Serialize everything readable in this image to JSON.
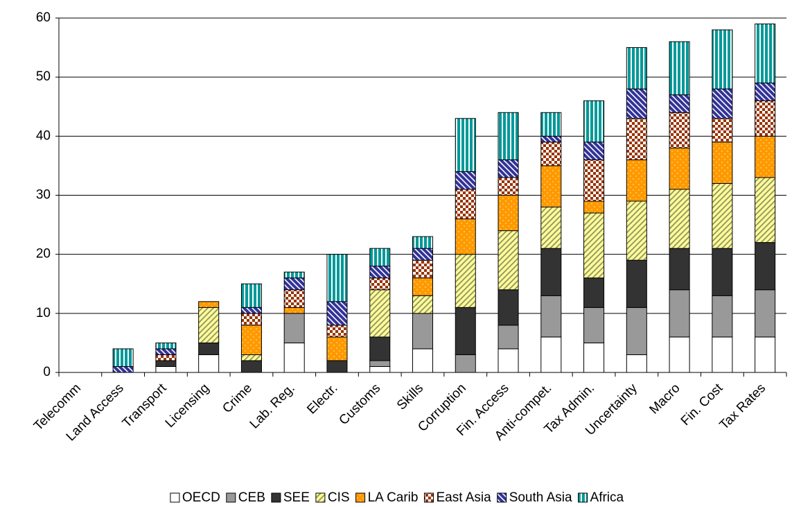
{
  "chart_data": {
    "type": "stacked_bar",
    "categories": [
      "Telecomm",
      "Land Access",
      "Transport",
      "Licensing",
      "Crime",
      "Lab. Reg.",
      "Electr.",
      "Customs",
      "Skills",
      "Corruption",
      "Fin. Access",
      "Anti-compet.",
      "Tax Admin.",
      "Uncertainty",
      "Macro",
      "Fin. Cost",
      "Tax Rates"
    ],
    "series": [
      {
        "name": "OECD",
        "color": "#ffffff",
        "pattern": "solid",
        "values": [
          0,
          0,
          1,
          3,
          0,
          5,
          0,
          1,
          4,
          0,
          4,
          6,
          5,
          3,
          6,
          6,
          6
        ]
      },
      {
        "name": "CEB",
        "color": "#999999",
        "pattern": "solid",
        "values": [
          0,
          0,
          0,
          0,
          0,
          5,
          0,
          1,
          6,
          3,
          4,
          7,
          6,
          8,
          8,
          7,
          8
        ]
      },
      {
        "name": "SEE",
        "color": "#333333",
        "pattern": "solid",
        "values": [
          0,
          0,
          1,
          2,
          2,
          0,
          2,
          4,
          0,
          8,
          6,
          8,
          5,
          8,
          7,
          8,
          8
        ]
      },
      {
        "name": "CIS",
        "color": "#ffff99",
        "pattern": "diagonal",
        "values": [
          0,
          0,
          0,
          6,
          1,
          0,
          0,
          8,
          3,
          9,
          10,
          7,
          11,
          10,
          10,
          11,
          11
        ]
      },
      {
        "name": "LA Carib",
        "color": "#ff9900",
        "pattern": "dots",
        "values": [
          0,
          0,
          0,
          1,
          5,
          1,
          4,
          0,
          3,
          6,
          6,
          7,
          2,
          7,
          7,
          7,
          7
        ]
      },
      {
        "name": "East Asia",
        "color": "#993300",
        "pattern": "checker",
        "values": [
          0,
          0,
          1,
          0,
          2,
          3,
          2,
          2,
          3,
          5,
          3,
          4,
          7,
          7,
          6,
          4,
          6
        ]
      },
      {
        "name": "South Asia",
        "color": "#333399",
        "pattern": "hatch",
        "values": [
          0,
          1,
          1,
          0,
          1,
          2,
          4,
          2,
          2,
          3,
          3,
          1,
          3,
          5,
          3,
          5,
          3
        ]
      },
      {
        "name": "Africa",
        "color": "#009999",
        "pattern": "vertical",
        "values": [
          0,
          3,
          1,
          0,
          4,
          1,
          8,
          3,
          2,
          9,
          8,
          4,
          7,
          7,
          9,
          10,
          10
        ]
      }
    ],
    "ylim": [
      0,
      60
    ],
    "yticks": [
      0,
      10,
      20,
      30,
      40,
      50,
      60
    ],
    "grid": true
  }
}
